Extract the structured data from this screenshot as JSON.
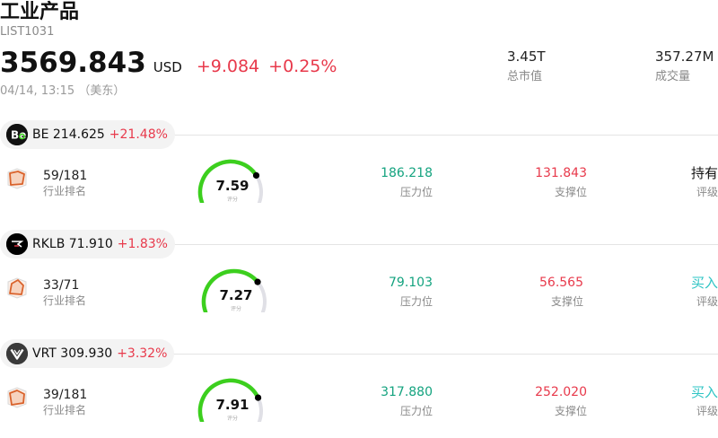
{
  "sector": {
    "title": "工业产品",
    "code": "LIST1031",
    "price": "3569.843",
    "currency": "USD",
    "change": "+9.084",
    "change_pct": "+0.25%",
    "time": "04/14, 13:15 （美东）",
    "market_cap": {
      "value": "3.45T",
      "label": "总市值"
    },
    "volume": {
      "value": "357.27M",
      "label": "成交量"
    }
  },
  "stocks": [
    {
      "ticker_price": "BE 214.625",
      "change_pct": "+21.48%",
      "logo_text": "Be",
      "rank": "59/181",
      "rank_label": "行业排名",
      "score": "7.59",
      "score_fraction": 0.759,
      "score_label": "评分",
      "resistance": "186.218",
      "resistance_label": "压力位",
      "support": "131.843",
      "support_label": "支撑位",
      "rating": "持有",
      "rating_color": "#111111",
      "rating_label": "评级"
    },
    {
      "ticker_price": "RKLB 71.910",
      "change_pct": "+1.83%",
      "logo_text": "R",
      "rank": "33/71",
      "rank_label": "行业排名",
      "score": "7.27",
      "score_fraction": 0.727,
      "score_label": "评分",
      "resistance": "79.103",
      "resistance_label": "压力位",
      "support": "56.565",
      "support_label": "支撑位",
      "rating": "买入",
      "rating_color": "#2ec4c4",
      "rating_label": "评级"
    },
    {
      "ticker_price": "VRT 309.930",
      "change_pct": "+3.32%",
      "logo_text": "V",
      "rank": "39/181",
      "rank_label": "行业排名",
      "score": "7.91",
      "score_fraction": 0.791,
      "score_label": "评分",
      "resistance": "317.880",
      "resistance_label": "压力位",
      "support": "252.020",
      "support_label": "支撑位",
      "rating": "买入",
      "rating_color": "#2ec4c4",
      "rating_label": "评级"
    }
  ],
  "colors": {
    "up": "#e8394b",
    "resistance": "#14a37f",
    "gauge_fill": "#3ccf1e",
    "gauge_track": "#e0e0e6",
    "rank_icon": "#d9622b"
  },
  "icons": [
    "be-logo-icon",
    "rklb-logo-icon",
    "vrt-logo-icon",
    "rank-radar-icon"
  ]
}
